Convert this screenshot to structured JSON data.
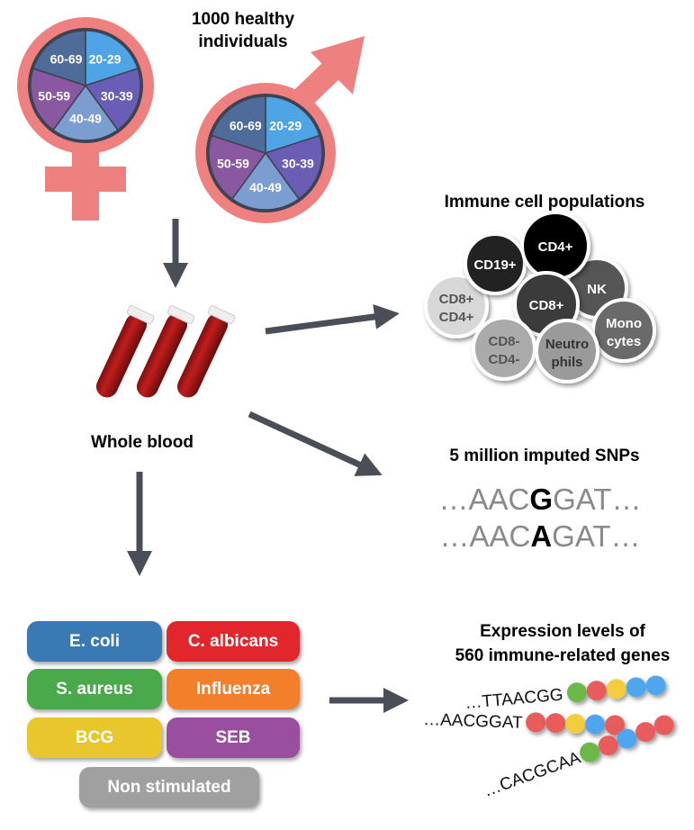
{
  "cohort": {
    "title_line1": "1000 healthy",
    "title_line2": "individuals",
    "age_groups": [
      "20-29",
      "30-39",
      "40-49",
      "50-59",
      "60-69"
    ],
    "age_colors": [
      "#4ea4e4",
      "#6a5db5",
      "#7b9dd0",
      "#8a58a0",
      "#4e6b99"
    ],
    "symbol_color": "#ee8080"
  },
  "blood": {
    "label": "Whole blood"
  },
  "cells": {
    "title": "Immune cell populations",
    "items": [
      {
        "l1": "CD8+",
        "l2": "CD4+",
        "color": "#d8d8d8",
        "text": "#555"
      },
      {
        "l1": "CD19+",
        "l2": "",
        "color": "#222222",
        "text": "#fff"
      },
      {
        "l1": "NK",
        "l2": "",
        "color": "#555555",
        "text": "#fff"
      },
      {
        "l1": "CD4+",
        "l2": "",
        "color": "#000000",
        "text": "#fff"
      },
      {
        "l1": "CD8+",
        "l2": "",
        "color": "#3a3a3a",
        "text": "#fff"
      },
      {
        "l1": "CD8-",
        "l2": "CD4-",
        "color": "#aaaaaa",
        "text": "#555"
      },
      {
        "l1": "Mono",
        "l2": "cytes",
        "color": "#6a6a6a",
        "text": "#fff"
      },
      {
        "l1": "Neutro",
        "l2": "phils",
        "color": "#9a9a9a",
        "text": "#333"
      }
    ]
  },
  "snps": {
    "title": "5 million imputed SNPs",
    "seq1": {
      "pre": "…AAC",
      "alt": "G",
      "post": "GAT…"
    },
    "seq2": {
      "pre": "…AAC",
      "alt": "A",
      "post": "GAT…"
    }
  },
  "stimuli": [
    {
      "label": "E. coli",
      "color": "#3a7ab4"
    },
    {
      "label": "C. albicans",
      "color": "#e1272b"
    },
    {
      "label": "S. aureus",
      "color": "#4aa94a"
    },
    {
      "label": "Influenza",
      "color": "#f47f2a"
    },
    {
      "label": "BCG",
      "color": "#e8c62c"
    },
    {
      "label": "SEB",
      "color": "#9a4e9f"
    },
    {
      "label": "Non stimulated",
      "color": "#a0a0a0"
    }
  ],
  "expression": {
    "title_line1": "Expression levels of",
    "title_line2": "560 immune-related genes",
    "strands": [
      {
        "seq": "…TTAACGG",
        "beads": [
          "#6cb94a",
          "#e85b5b",
          "#f2cd3c",
          "#4fa5ee",
          "#4fa5ee"
        ]
      },
      {
        "seq": "…AACGGAT",
        "beads": [
          "#e85b5b",
          "#e85b5b",
          "#f2cd3c",
          "#4fa5ee",
          "#e85b5b"
        ]
      },
      {
        "seq": "…CACGCAA",
        "beads": [
          "#6cb94a",
          "#e85b5b",
          "#4fa5ee",
          "#e85b5b",
          "#e85b5b"
        ]
      }
    ]
  },
  "arrow_color": "#4a4f57"
}
